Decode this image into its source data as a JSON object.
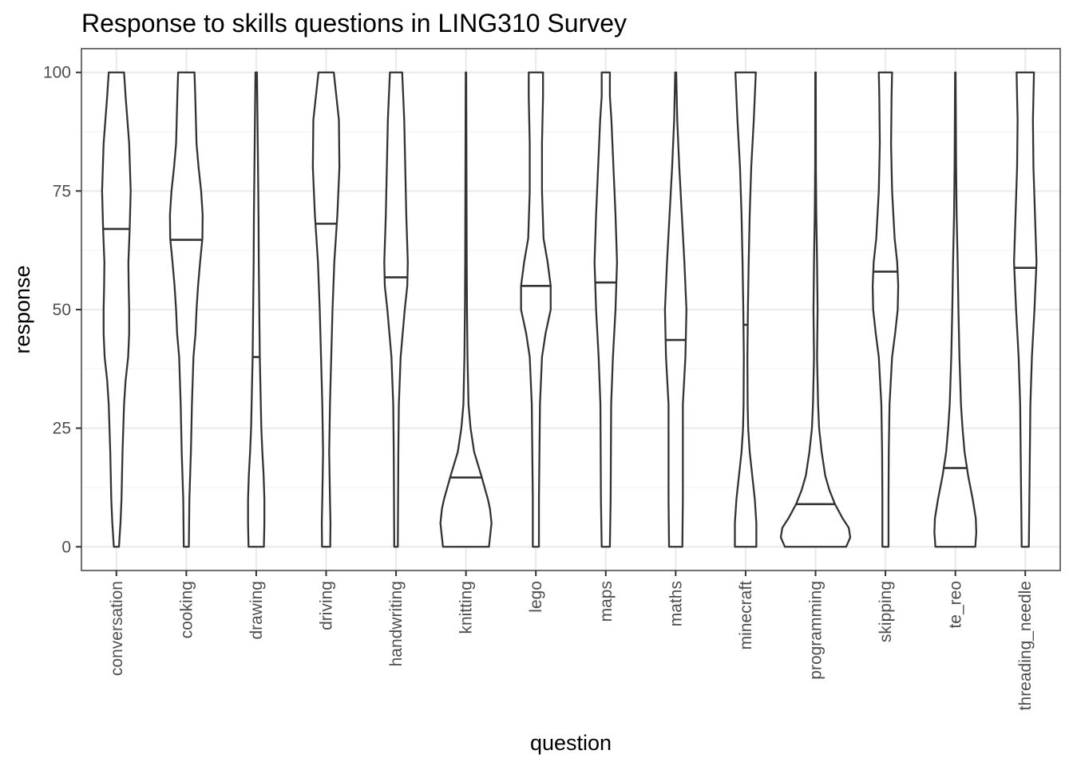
{
  "chart_data": {
    "type": "violin",
    "title": "Response to skills questions in LING310 Survey",
    "xlabel": "question",
    "ylabel": "response",
    "ylim": [
      -5,
      105
    ],
    "yticks": [
      0,
      25,
      50,
      75,
      100
    ],
    "grid": true,
    "categories": [
      "conversation",
      "cooking",
      "drawing",
      "driving",
      "handwriting",
      "knitting",
      "lego",
      "maps",
      "maths",
      "minecraft",
      "programming",
      "skipping",
      "te_reo",
      "threading_needle"
    ],
    "series": [
      {
        "category": "conversation",
        "median": 67,
        "min": 0,
        "max": 100,
        "density": [
          [
            0,
            1.0
          ],
          [
            5,
            1.6
          ],
          [
            10,
            2.0
          ],
          [
            20,
            2.4
          ],
          [
            30,
            3.0
          ],
          [
            35,
            3.6
          ],
          [
            40,
            4.6
          ],
          [
            45,
            5.0
          ],
          [
            50,
            5.0
          ],
          [
            55,
            4.8
          ],
          [
            60,
            4.7
          ],
          [
            67,
            5.2
          ],
          [
            75,
            5.6
          ],
          [
            85,
            5.0
          ],
          [
            95,
            3.6
          ],
          [
            100,
            3.0
          ]
        ]
      },
      {
        "category": "cooking",
        "median": 64.7,
        "min": 0,
        "max": 100,
        "density": [
          [
            0,
            1.0
          ],
          [
            10,
            1.2
          ],
          [
            20,
            1.8
          ],
          [
            30,
            2.2
          ],
          [
            40,
            2.8
          ],
          [
            45,
            3.6
          ],
          [
            50,
            4.0
          ],
          [
            55,
            4.6
          ],
          [
            60,
            5.4
          ],
          [
            65,
            6.3
          ],
          [
            70,
            6.4
          ],
          [
            75,
            5.8
          ],
          [
            80,
            4.8
          ],
          [
            85,
            4.0
          ],
          [
            95,
            3.5
          ],
          [
            100,
            3.2
          ]
        ]
      },
      {
        "category": "drawing",
        "median": 40,
        "min": 0,
        "max": 100,
        "density": [
          [
            0,
            3.0
          ],
          [
            5,
            3.2
          ],
          [
            10,
            3.2
          ],
          [
            15,
            2.9
          ],
          [
            20,
            2.4
          ],
          [
            25,
            2.0
          ],
          [
            30,
            1.8
          ],
          [
            40,
            1.4
          ],
          [
            50,
            1.2
          ],
          [
            60,
            1.0
          ],
          [
            70,
            0.9
          ],
          [
            80,
            0.7
          ],
          [
            90,
            0.5
          ],
          [
            100,
            0.3
          ]
        ]
      },
      {
        "category": "driving",
        "median": 68.1,
        "min": 0,
        "max": 100,
        "density": [
          [
            0,
            1.6
          ],
          [
            5,
            1.7
          ],
          [
            10,
            1.5
          ],
          [
            20,
            1.2
          ],
          [
            30,
            1.5
          ],
          [
            40,
            2.0
          ],
          [
            50,
            2.5
          ],
          [
            60,
            3.2
          ],
          [
            70,
            4.4
          ],
          [
            80,
            5.2
          ],
          [
            90,
            5.0
          ],
          [
            100,
            3.0
          ]
        ]
      },
      {
        "category": "handwriting",
        "median": 56.8,
        "min": 0,
        "max": 100,
        "density": [
          [
            0,
            0.7
          ],
          [
            10,
            0.8
          ],
          [
            20,
            0.9
          ],
          [
            30,
            1.1
          ],
          [
            40,
            1.8
          ],
          [
            45,
            2.6
          ],
          [
            50,
            3.4
          ],
          [
            55,
            4.4
          ],
          [
            60,
            4.6
          ],
          [
            70,
            4.0
          ],
          [
            80,
            3.6
          ],
          [
            90,
            3.2
          ],
          [
            100,
            2.4
          ]
        ]
      },
      {
        "category": "knitting",
        "median": 14.6,
        "min": 0,
        "max": 100,
        "density": [
          [
            0,
            9.0
          ],
          [
            2,
            9.4
          ],
          [
            5,
            10.0
          ],
          [
            8,
            9.4
          ],
          [
            10,
            8.6
          ],
          [
            15,
            6.0
          ],
          [
            20,
            3.2
          ],
          [
            25,
            1.8
          ],
          [
            30,
            1.0
          ],
          [
            40,
            0.6
          ],
          [
            50,
            0.4
          ],
          [
            60,
            0.3
          ],
          [
            70,
            0.25
          ],
          [
            80,
            0.2
          ],
          [
            100,
            0.1
          ]
        ]
      },
      {
        "category": "lego",
        "median": 55,
        "min": 0,
        "max": 100,
        "density": [
          [
            0,
            1.2
          ],
          [
            10,
            1.2
          ],
          [
            20,
            1.4
          ],
          [
            30,
            1.6
          ],
          [
            40,
            2.4
          ],
          [
            45,
            3.8
          ],
          [
            50,
            5.8
          ],
          [
            55,
            5.8
          ],
          [
            60,
            4.6
          ],
          [
            65,
            3.0
          ],
          [
            75,
            2.4
          ],
          [
            85,
            2.4
          ],
          [
            95,
            2.8
          ],
          [
            100,
            2.8
          ]
        ]
      },
      {
        "category": "maps",
        "median": 55.7,
        "min": 0,
        "max": 100,
        "density": [
          [
            0,
            1.6
          ],
          [
            10,
            1.9
          ],
          [
            20,
            2.0
          ],
          [
            30,
            2.1
          ],
          [
            40,
            2.8
          ],
          [
            50,
            3.8
          ],
          [
            60,
            4.4
          ],
          [
            70,
            3.8
          ],
          [
            80,
            3.0
          ],
          [
            90,
            2.2
          ],
          [
            95,
            1.6
          ],
          [
            100,
            1.6
          ]
        ]
      },
      {
        "category": "maths",
        "median": 43.6,
        "min": 0,
        "max": 100,
        "density": [
          [
            0,
            2.6
          ],
          [
            10,
            2.8
          ],
          [
            20,
            2.8
          ],
          [
            30,
            2.8
          ],
          [
            40,
            3.8
          ],
          [
            50,
            4.2
          ],
          [
            60,
            3.4
          ],
          [
            70,
            2.4
          ],
          [
            80,
            1.4
          ],
          [
            90,
            0.6
          ],
          [
            100,
            0.2
          ]
        ]
      },
      {
        "category": "minecraft",
        "median": 46.8,
        "min": 0,
        "max": 100,
        "density": [
          [
            0,
            4.2
          ],
          [
            5,
            4.2
          ],
          [
            10,
            3.6
          ],
          [
            15,
            2.6
          ],
          [
            20,
            1.6
          ],
          [
            25,
            1.0
          ],
          [
            30,
            0.8
          ],
          [
            40,
            0.7
          ],
          [
            50,
            0.9
          ],
          [
            60,
            1.2
          ],
          [
            70,
            1.6
          ],
          [
            80,
            2.2
          ],
          [
            90,
            3.2
          ],
          [
            100,
            4.0
          ]
        ]
      },
      {
        "category": "programming",
        "median": 9,
        "min": 0,
        "max": 100,
        "density": [
          [
            0,
            12.0
          ],
          [
            2,
            13.6
          ],
          [
            4,
            13.0
          ],
          [
            6,
            10.6
          ],
          [
            9,
            7.6
          ],
          [
            12,
            5.4
          ],
          [
            15,
            3.8
          ],
          [
            20,
            2.4
          ],
          [
            25,
            1.4
          ],
          [
            30,
            1.0
          ],
          [
            40,
            0.6
          ],
          [
            50,
            0.8
          ],
          [
            60,
            0.6
          ],
          [
            70,
            0.3
          ],
          [
            80,
            0.15
          ],
          [
            100,
            0.1
          ]
        ]
      },
      {
        "category": "skipping",
        "median": 58,
        "min": 0,
        "max": 100,
        "density": [
          [
            0,
            1.2
          ],
          [
            10,
            1.2
          ],
          [
            20,
            1.3
          ],
          [
            30,
            1.6
          ],
          [
            40,
            2.6
          ],
          [
            45,
            3.8
          ],
          [
            50,
            4.8
          ],
          [
            55,
            5.0
          ],
          [
            60,
            4.6
          ],
          [
            65,
            3.6
          ],
          [
            75,
            2.6
          ],
          [
            85,
            2.2
          ],
          [
            95,
            2.4
          ],
          [
            100,
            2.6
          ]
        ]
      },
      {
        "category": "te_reo",
        "median": 16.6,
        "min": 0,
        "max": 100,
        "density": [
          [
            0,
            7.8
          ],
          [
            3,
            8.2
          ],
          [
            6,
            8.0
          ],
          [
            10,
            6.8
          ],
          [
            15,
            5.0
          ],
          [
            20,
            3.6
          ],
          [
            25,
            2.8
          ],
          [
            30,
            2.2
          ],
          [
            40,
            1.6
          ],
          [
            50,
            1.2
          ],
          [
            60,
            0.9
          ],
          [
            70,
            0.5
          ],
          [
            80,
            0.3
          ],
          [
            90,
            0.2
          ],
          [
            100,
            0.1
          ]
        ]
      },
      {
        "category": "threading_needle",
        "median": 58.8,
        "min": 0,
        "max": 100,
        "density": [
          [
            0,
            1.4
          ],
          [
            10,
            1.6
          ],
          [
            20,
            1.8
          ],
          [
            30,
            2.0
          ],
          [
            40,
            2.6
          ],
          [
            50,
            3.6
          ],
          [
            60,
            4.4
          ],
          [
            70,
            3.8
          ],
          [
            80,
            3.2
          ],
          [
            90,
            3.0
          ],
          [
            100,
            3.4
          ]
        ]
      }
    ]
  }
}
